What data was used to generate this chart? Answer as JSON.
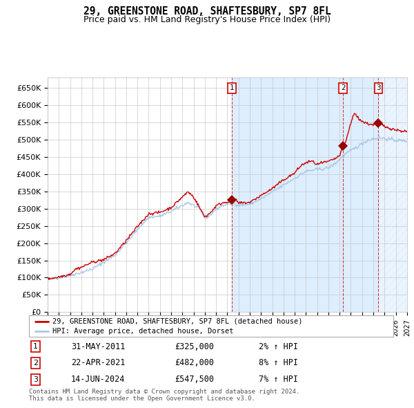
{
  "title": "29, GREENSTONE ROAD, SHAFTESBURY, SP7 8FL",
  "subtitle": "Price paid vs. HM Land Registry's House Price Index (HPI)",
  "ylim": [
    0,
    680000
  ],
  "yticks": [
    0,
    50000,
    100000,
    150000,
    200000,
    250000,
    300000,
    350000,
    400000,
    450000,
    500000,
    550000,
    600000,
    650000
  ],
  "ytick_labels": [
    "£0",
    "£50K",
    "£100K",
    "£150K",
    "£200K",
    "£250K",
    "£300K",
    "£350K",
    "£400K",
    "£450K",
    "£500K",
    "£550K",
    "£600K",
    "£650K"
  ],
  "x_start_year": 1995,
  "x_end_year": 2027,
  "hpi_color": "#a8c8e8",
  "price_color": "#cc0000",
  "bg_color": "#ffffff",
  "shaded_color": "#ddeeff",
  "sale_years": [
    2011.42,
    2021.31,
    2024.46
  ],
  "sale_prices": [
    325000,
    482000,
    547500
  ],
  "sale_labels": [
    "1",
    "2",
    "3"
  ],
  "sale_pct": [
    "2% ↑ HPI",
    "8% ↑ HPI",
    "7% ↑ HPI"
  ],
  "sale_date_strs": [
    "31-MAY-2011",
    "22-APR-2021",
    "14-JUN-2024"
  ],
  "sale_price_strs": [
    "£325,000",
    "£482,000",
    "£547,500"
  ],
  "legend_label1": "29, GREENSTONE ROAD, SHAFTESBURY, SP7 8FL (detached house)",
  "legend_label2": "HPI: Average price, detached house, Dorset",
  "footnote1": "Contains HM Land Registry data © Crown copyright and database right 2024.",
  "footnote2": "This data is licensed under the Open Government Licence v3.0."
}
